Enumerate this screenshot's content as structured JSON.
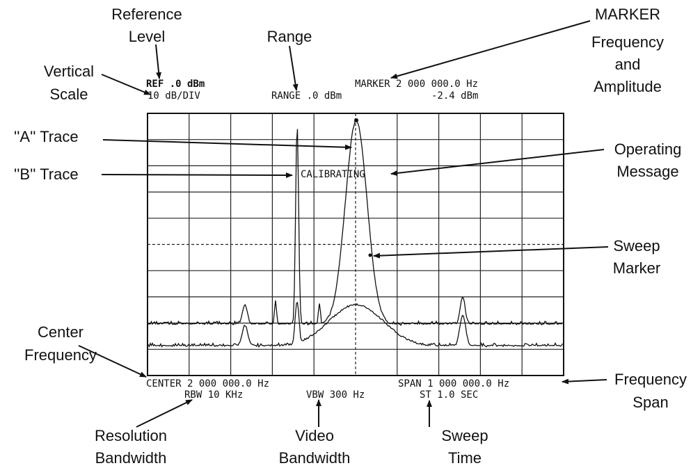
{
  "display": {
    "ref_level": "REF .0 dBm",
    "vertical_scale": "10 dB/DIV",
    "range": "RANGE .0 dBm",
    "marker_freq": "MARKER 2 000 000.0 Hz",
    "marker_amp": "-2.4 dBm",
    "message": "CALIBRATING",
    "center": "CENTER 2 000 000.0 Hz",
    "span": "SPAN 1 000 000.0 Hz",
    "rbw": "RBW 10 KHz",
    "vbw": "VBW 300 Hz",
    "sweep_time": "ST 1.0 SEC"
  },
  "callouts": {
    "reference_level": [
      "Reference",
      "Level"
    ],
    "range": [
      "Range"
    ],
    "marker": [
      "MARKER",
      "Frequency",
      "and",
      "Amplitude"
    ],
    "vertical_scale": [
      "Vertical",
      "Scale"
    ],
    "a_trace": [
      "''A'' Trace"
    ],
    "operating_message": [
      "Operating",
      "Message"
    ],
    "b_trace": [
      "''B'' Trace"
    ],
    "sweep_marker": [
      "Sweep",
      "Marker"
    ],
    "center_frequency": [
      "Center",
      "Frequency"
    ],
    "frequency_span": [
      "Frequency",
      "Span"
    ],
    "resolution_bandwidth": [
      "Resolution",
      "Bandwidth"
    ],
    "video_bandwidth": [
      "Video",
      "Bandwidth"
    ],
    "sweep_time": [
      "Sweep",
      "Time"
    ]
  }
}
